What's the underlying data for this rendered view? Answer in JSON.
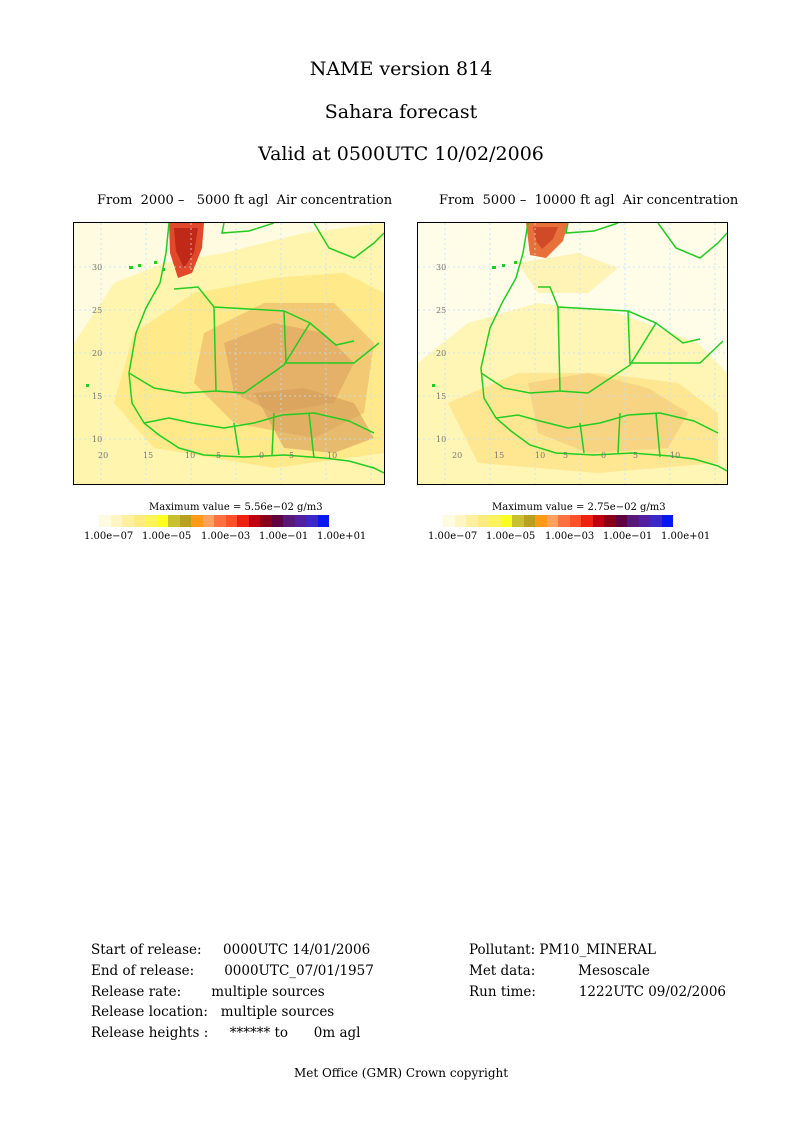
{
  "titles": {
    "line1": "NAME version 814",
    "line2": "Sahara forecast",
    "line3": "Valid at 0500UTC 10/02/2006"
  },
  "panels": [
    {
      "title": "From  2000 –   5000 ft agl  Air concentration",
      "max_value": "Maximum value = 5.56e−02 g/m3",
      "lat_labels": [
        "30",
        "25",
        "20",
        "15",
        "10"
      ],
      "lon_labels": [
        "20",
        "15",
        "10",
        "5",
        "0",
        "5",
        "10"
      ]
    },
    {
      "title": "From  5000 –  10000 ft agl  Air concentration",
      "max_value": "Maximum value = 2.75e−02 g/m3",
      "lat_labels": [
        "30",
        "25",
        "20",
        "15",
        "10"
      ],
      "lon_labels": [
        "20",
        "15",
        "10",
        "5",
        "0",
        "5",
        "10"
      ]
    }
  ],
  "colorscale": {
    "colors": [
      "#fffbe0",
      "#fff6c4",
      "#fff0a0",
      "#ffec80",
      "#fff55a",
      "#ffff20",
      "#c8c030",
      "#b8a020",
      "#ff9a18",
      "#ffa060",
      "#ff7040",
      "#ff5028",
      "#ee2010",
      "#c00010",
      "#8a0018",
      "#600040",
      "#581878",
      "#5020a0",
      "#3a28c8",
      "#0818f0"
    ],
    "ticks": [
      "1.00e−07",
      "1.00e−05",
      "1.00e−03",
      "1.00e−01",
      "1.00e+01"
    ]
  },
  "info_left": {
    "start": "Start of release:     0000UTC 14/01/2006",
    "end": "End of release:       0000UTC_07/01/1957",
    "rate": "Release rate:       multiple sources",
    "location": "Release location:   multiple sources",
    "heights": "Release heights :     ****** to      0m agl"
  },
  "info_right": {
    "pollutant": "Pollutant: PM10_MINERAL",
    "met": "Met data:          Mesoscale",
    "run": "Run time:          1222UTC 09/02/2006"
  },
  "footer": "Met Office (GMR)  Crown copyright"
}
